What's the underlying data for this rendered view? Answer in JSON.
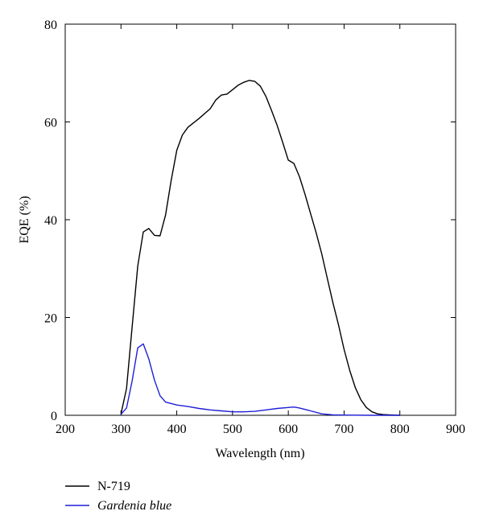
{
  "chart_data": {
    "type": "line",
    "title": "",
    "xlabel": "Wavelength (nm)",
    "ylabel": "EQE (%)",
    "xlim": [
      200,
      900
    ],
    "ylim": [
      0,
      80
    ],
    "xticks": [
      200,
      300,
      400,
      500,
      600,
      700,
      800,
      900
    ],
    "yticks": [
      0,
      20,
      40,
      60,
      80
    ],
    "grid": false,
    "legend_position": "bottom-left",
    "series": [
      {
        "name": "N-719",
        "color": "#000000",
        "italic": false,
        "x": [
          300,
          310,
          320,
          330,
          340,
          350,
          360,
          370,
          380,
          390,
          400,
          410,
          420,
          440,
          460,
          470,
          480,
          490,
          500,
          510,
          520,
          530,
          540,
          550,
          560,
          570,
          580,
          590,
          600,
          610,
          620,
          630,
          640,
          650,
          660,
          670,
          680,
          690,
          700,
          710,
          720,
          730,
          740,
          750,
          760,
          770,
          780,
          790,
          800
        ],
        "y": [
          0.3,
          5.5,
          18,
          30.5,
          37.5,
          38.2,
          36.8,
          36.7,
          41,
          48,
          54.2,
          57.3,
          58.9,
          60.7,
          62.7,
          64.5,
          65.5,
          65.7,
          66.6,
          67.5,
          68.1,
          68.5,
          68.3,
          67.3,
          65.2,
          62.3,
          59.3,
          55.8,
          52.2,
          51.5,
          48.8,
          45.2,
          41.2,
          37.3,
          33,
          28,
          23,
          18.5,
          13.5,
          9.2,
          5.7,
          3.2,
          1.6,
          0.7,
          0.3,
          0.15,
          0.1,
          0.05,
          0
        ]
      },
      {
        "name": "Gardenia blue",
        "color": "#1f1fd6",
        "italic": true,
        "x": [
          300,
          310,
          320,
          330,
          340,
          350,
          360,
          370,
          380,
          400,
          420,
          440,
          460,
          480,
          500,
          520,
          540,
          560,
          580,
          600,
          610,
          620,
          640,
          660,
          680,
          700,
          750,
          800
        ],
        "y": [
          0.2,
          1.5,
          7,
          13.8,
          14.6,
          11.5,
          7.2,
          4,
          2.7,
          2.1,
          1.8,
          1.4,
          1.1,
          0.9,
          0.7,
          0.7,
          0.8,
          1.1,
          1.4,
          1.6,
          1.7,
          1.5,
          0.9,
          0.3,
          0.1,
          0.05,
          0,
          0
        ]
      }
    ]
  }
}
